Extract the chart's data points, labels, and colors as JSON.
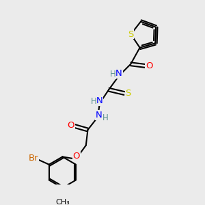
{
  "bg_color": "#ebebeb",
  "bond_color": "#000000",
  "bond_width": 1.5,
  "atom_colors": {
    "S": "#cccc00",
    "O": "#ff0000",
    "N": "#0000ff",
    "H": "#5a9090",
    "Br": "#cc6600",
    "C": "#000000"
  },
  "font_size": 8.5
}
